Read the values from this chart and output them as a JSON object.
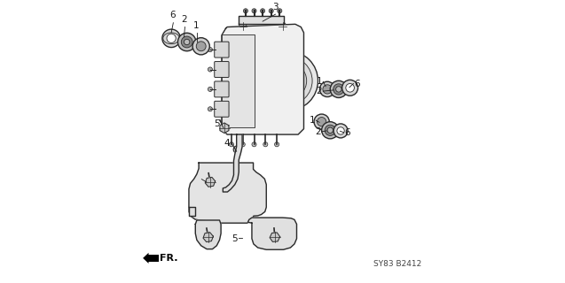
{
  "bg_color": "#ffffff",
  "line_color": "#2a2a2a",
  "label_color": "#1a1a1a",
  "part_code": "SY83 B2412",
  "direction_label": "FR.",
  "figsize": [
    6.37,
    3.2
  ],
  "dpi": 100
}
